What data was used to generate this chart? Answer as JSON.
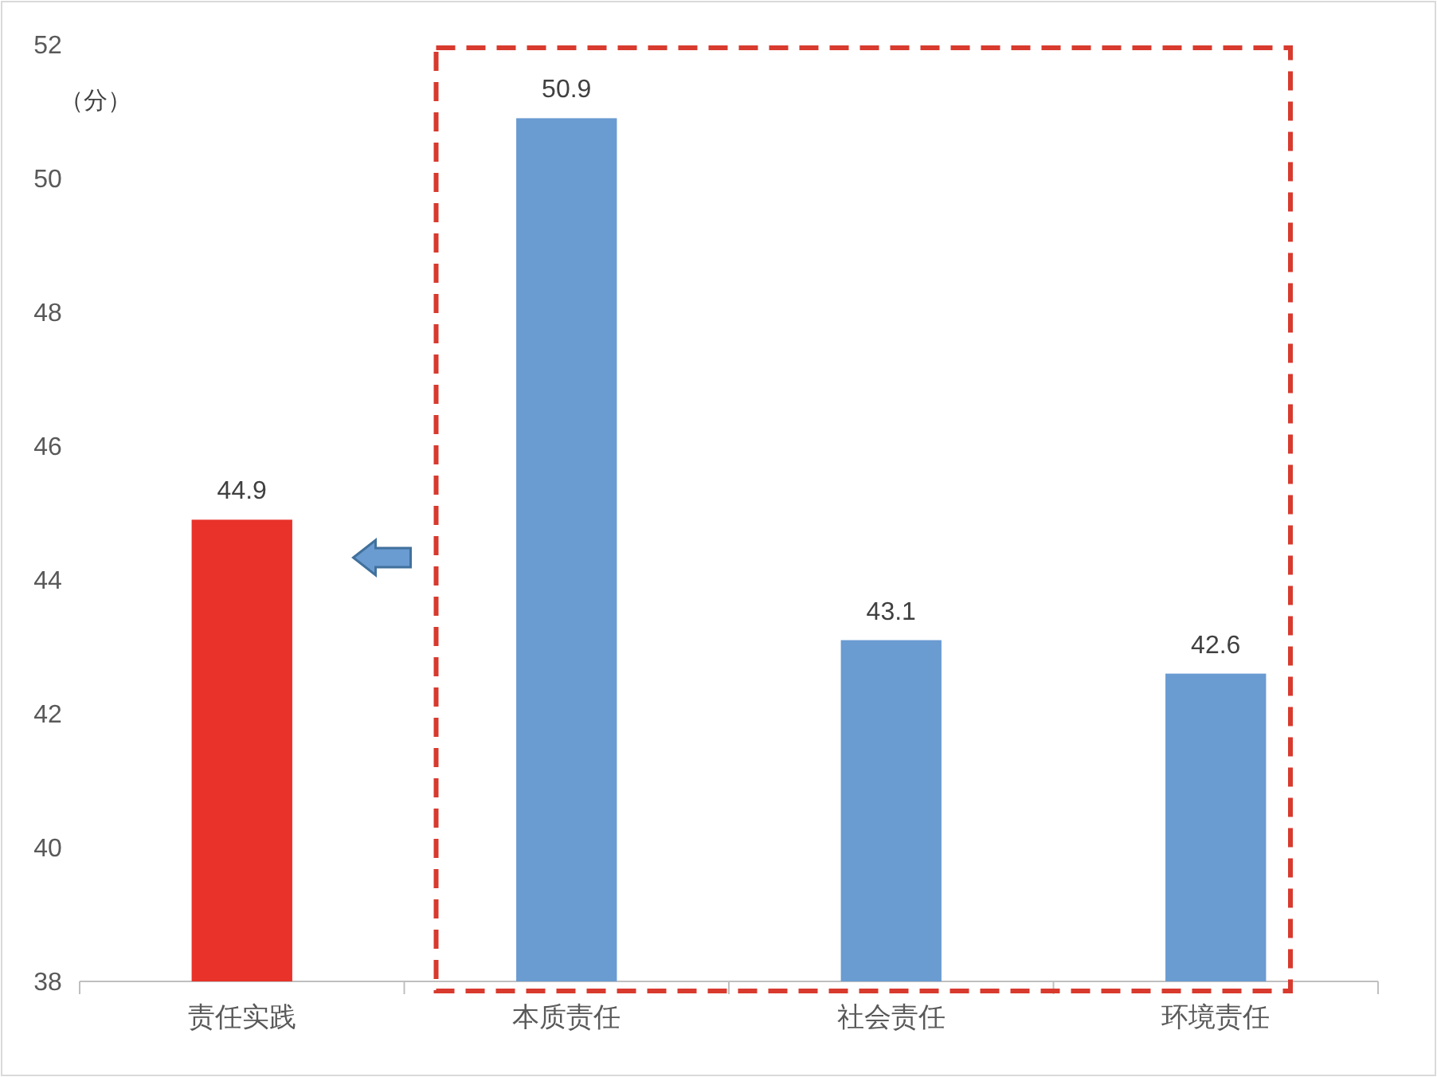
{
  "chart_data": {
    "type": "bar",
    "ylabel": "（分）",
    "categories": [
      "责任实践",
      "本质责任",
      "社会责任",
      "环境责任"
    ],
    "values": [
      44.9,
      50.9,
      43.1,
      42.6
    ],
    "colors": [
      "#e8322a",
      "#6a9bd1",
      "#6a9bd1",
      "#6a9bd1"
    ],
    "ylim": [
      38,
      52
    ],
    "yticks": [
      38,
      40,
      42,
      44,
      46,
      48,
      50,
      52
    ],
    "data_labels": true
  }
}
